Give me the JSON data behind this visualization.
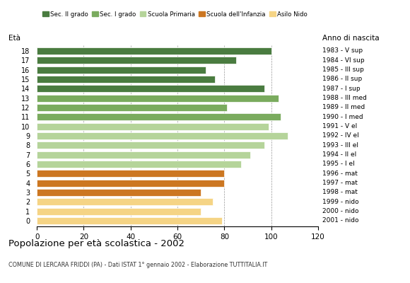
{
  "ages": [
    18,
    17,
    16,
    15,
    14,
    13,
    12,
    11,
    10,
    9,
    8,
    7,
    6,
    5,
    4,
    3,
    2,
    1,
    0
  ],
  "values": [
    100,
    85,
    72,
    76,
    97,
    103,
    81,
    104,
    99,
    107,
    97,
    91,
    87,
    80,
    80,
    70,
    75,
    70,
    79
  ],
  "years": [
    "1983 - V sup",
    "1984 - VI sup",
    "1985 - III sup",
    "1986 - II sup",
    "1987 - I sup",
    "1988 - III med",
    "1989 - II med",
    "1990 - I med",
    "1991 - V el",
    "1992 - IV el",
    "1993 - III el",
    "1994 - II el",
    "1995 - I el",
    "1996 - mat",
    "1997 - mat",
    "1998 - mat",
    "1999 - nido",
    "2000 - nido",
    "2001 - nido"
  ],
  "colors": [
    "#4a7c40",
    "#4a7c40",
    "#4a7c40",
    "#4a7c40",
    "#4a7c40",
    "#7aab5e",
    "#7aab5e",
    "#7aab5e",
    "#b5d49a",
    "#b5d49a",
    "#b5d49a",
    "#b5d49a",
    "#b5d49a",
    "#cc7722",
    "#cc7722",
    "#cc7722",
    "#f5d485",
    "#f5d485",
    "#f5d485"
  ],
  "legend_labels": [
    "Sec. II grado",
    "Sec. I grado",
    "Scuola Primaria",
    "Scuola dell'Infanzia",
    "Asilo Nido"
  ],
  "legend_colors": [
    "#4a7c40",
    "#7aab5e",
    "#b5d49a",
    "#cc7722",
    "#f5d485"
  ],
  "title": "Popolazione per età scolastica - 2002",
  "subtitle": "COMUNE DI LERCARA FRIDDI (PA) - Dati ISTAT 1° gennaio 2002 - Elaborazione TUTTITALIA.IT",
  "xlabel_left": "Età",
  "xlabel_right": "Anno di nascita",
  "xlim": [
    0,
    120
  ],
  "xticks": [
    0,
    20,
    40,
    60,
    80,
    100,
    120
  ],
  "bar_height": 0.75,
  "background_color": "#ffffff",
  "grid_color": "#999999"
}
